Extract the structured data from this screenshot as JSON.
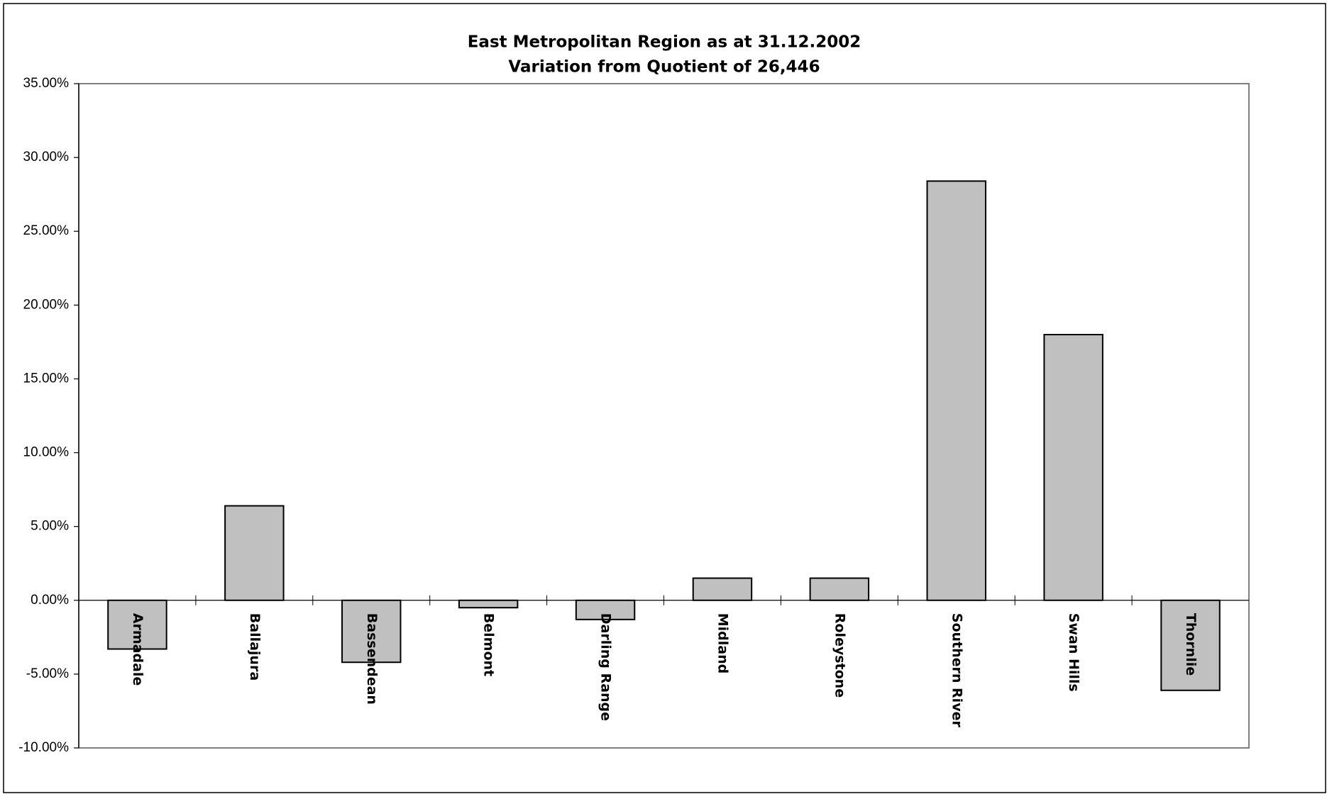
{
  "chart_data": {
    "type": "bar",
    "title": "East Metropolitan Region as at 31.12.2002",
    "subtitle": "Variation from Quotient of 26,446",
    "categories": [
      "Armadale",
      "Ballajura",
      "Bassendean",
      "Belmont",
      "Darling Range",
      "Midland",
      "Roleystone",
      "Southern River",
      "Swan Hills",
      "Thornlie"
    ],
    "values": [
      -3.3,
      6.4,
      -4.2,
      -0.5,
      -1.3,
      1.5,
      1.5,
      28.4,
      18.0,
      -6.1
    ],
    "color": "#c0c0c0",
    "ylim": [
      -10,
      35
    ],
    "yticks": [
      {
        "value": -10,
        "label": "-10.00%"
      },
      {
        "value": -5,
        "label": "-5.00%"
      },
      {
        "value": 0,
        "label": "0.00%"
      },
      {
        "value": 5,
        "label": "5.00%"
      },
      {
        "value": 10,
        "label": "10.00%"
      },
      {
        "value": 15,
        "label": "15.00%"
      },
      {
        "value": 20,
        "label": "20.00%"
      },
      {
        "value": 25,
        "label": "25.00%"
      },
      {
        "value": 30,
        "label": "30.00%"
      },
      {
        "value": 35,
        "label": "35.00%"
      }
    ],
    "grid": false
  }
}
